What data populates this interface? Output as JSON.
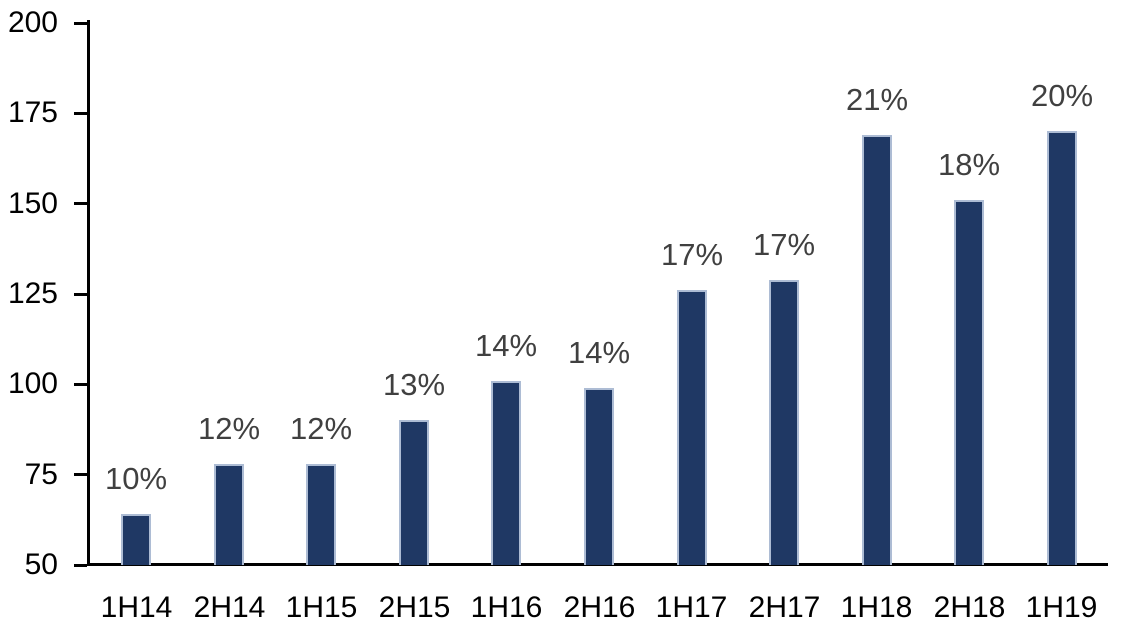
{
  "chart_data": {
    "type": "bar",
    "title": "",
    "xlabel": "",
    "ylabel": "",
    "categories": [
      "1H14",
      "2H14",
      "1H15",
      "2H15",
      "1H16",
      "2H16",
      "1H17",
      "2H17",
      "1H18",
      "2H18",
      "1H19"
    ],
    "values": [
      64,
      78,
      78,
      90,
      101,
      99,
      126,
      129,
      169,
      151,
      170
    ],
    "bar_labels": [
      "10%",
      "12%",
      "12%",
      "13%",
      "14%",
      "14%",
      "17%",
      "17%",
      "21%",
      "18%",
      "20%"
    ],
    "ylim": [
      50,
      200
    ],
    "ytick_step": 25,
    "yticks": [
      50,
      75,
      100,
      125,
      150,
      175,
      200
    ],
    "grid": false,
    "legend": false,
    "colors": {
      "bar_fill": "#1F3864",
      "bar_border": "#ADBCD4",
      "axis": "#000000",
      "axis_label": "#000000",
      "data_label": "#404040",
      "background": "#FFFFFF"
    }
  }
}
